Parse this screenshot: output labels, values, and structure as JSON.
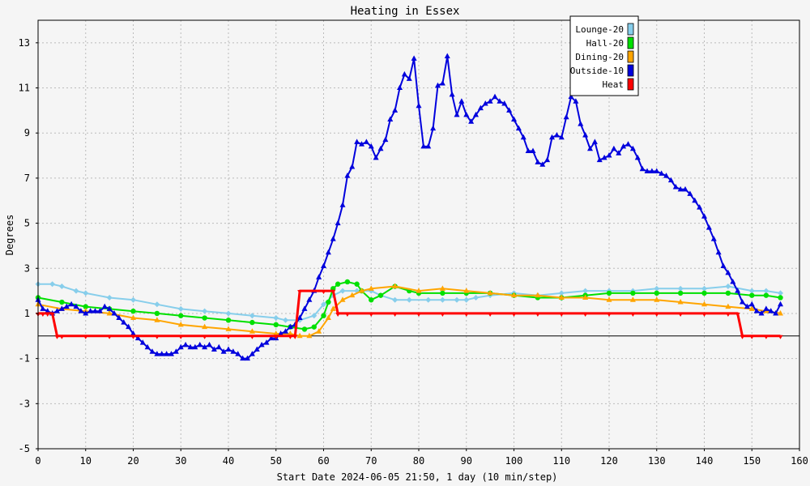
{
  "chart_data": {
    "type": "line",
    "title": "Heating in Essex",
    "xlabel": "Start Date 2024-06-05 21:50, 1 day (10 min/step)",
    "ylabel": "Degrees",
    "xlim": [
      0,
      160
    ],
    "ylim": [
      -5,
      14
    ],
    "x_ticks": [
      0,
      10,
      20,
      30,
      40,
      50,
      60,
      70,
      80,
      90,
      100,
      110,
      120,
      130,
      140,
      150,
      160
    ],
    "y_ticks": [
      -5,
      -3,
      -1,
      1,
      3,
      5,
      7,
      9,
      11,
      13
    ],
    "grid": true,
    "legend_position": "top-right",
    "series": [
      {
        "name": "Lounge-20",
        "color": "#87ceeb",
        "marker": "diamond",
        "points": [
          [
            0,
            2.3
          ],
          [
            3,
            2.3
          ],
          [
            5,
            2.2
          ],
          [
            8,
            2
          ],
          [
            10,
            1.9
          ],
          [
            15,
            1.7
          ],
          [
            20,
            1.6
          ],
          [
            25,
            1.4
          ],
          [
            30,
            1.2
          ],
          [
            35,
            1.1
          ],
          [
            40,
            1
          ],
          [
            45,
            0.9
          ],
          [
            50,
            0.8
          ],
          [
            52,
            0.7
          ],
          [
            55,
            0.7
          ],
          [
            58,
            0.9
          ],
          [
            60,
            1.4
          ],
          [
            62,
            1.8
          ],
          [
            64,
            2
          ],
          [
            67,
            2
          ],
          [
            70,
            2
          ],
          [
            72,
            1.8
          ],
          [
            75,
            1.6
          ],
          [
            78,
            1.6
          ],
          [
            82,
            1.6
          ],
          [
            85,
            1.6
          ],
          [
            88,
            1.6
          ],
          [
            90,
            1.6
          ],
          [
            92,
            1.7
          ],
          [
            95,
            1.8
          ],
          [
            100,
            1.9
          ],
          [
            105,
            1.8
          ],
          [
            110,
            1.9
          ],
          [
            115,
            2
          ],
          [
            120,
            2
          ],
          [
            125,
            2
          ],
          [
            130,
            2.1
          ],
          [
            135,
            2.1
          ],
          [
            140,
            2.1
          ],
          [
            145,
            2.2
          ],
          [
            150,
            2
          ],
          [
            153,
            2
          ],
          [
            156,
            1.9
          ]
        ]
      },
      {
        "name": "Hall-20",
        "color": "#00e000",
        "marker": "circle",
        "points": [
          [
            0,
            1.7
          ],
          [
            5,
            1.5
          ],
          [
            10,
            1.3
          ],
          [
            15,
            1.2
          ],
          [
            20,
            1.1
          ],
          [
            25,
            1
          ],
          [
            30,
            0.9
          ],
          [
            35,
            0.8
          ],
          [
            40,
            0.7
          ],
          [
            45,
            0.6
          ],
          [
            50,
            0.5
          ],
          [
            53,
            0.4
          ],
          [
            56,
            0.3
          ],
          [
            58,
            0.4
          ],
          [
            60,
            0.9
          ],
          [
            61,
            1.5
          ],
          [
            62,
            2.1
          ],
          [
            63,
            2.3
          ],
          [
            65,
            2.4
          ],
          [
            67,
            2.3
          ],
          [
            68,
            2
          ],
          [
            70,
            1.6
          ],
          [
            72,
            1.8
          ],
          [
            75,
            2.2
          ],
          [
            78,
            2
          ],
          [
            80,
            1.9
          ],
          [
            85,
            1.9
          ],
          [
            90,
            1.9
          ],
          [
            95,
            1.9
          ],
          [
            100,
            1.8
          ],
          [
            105,
            1.7
          ],
          [
            110,
            1.7
          ],
          [
            115,
            1.8
          ],
          [
            120,
            1.9
          ],
          [
            125,
            1.9
          ],
          [
            130,
            1.9
          ],
          [
            135,
            1.9
          ],
          [
            140,
            1.9
          ],
          [
            145,
            1.9
          ],
          [
            150,
            1.8
          ],
          [
            153,
            1.8
          ],
          [
            156,
            1.7
          ]
        ]
      },
      {
        "name": "Dining-20",
        "color": "#ffa500",
        "marker": "triangle",
        "points": [
          [
            0,
            1.4
          ],
          [
            5,
            1.2
          ],
          [
            10,
            1.1
          ],
          [
            15,
            1
          ],
          [
            20,
            0.8
          ],
          [
            25,
            0.7
          ],
          [
            30,
            0.5
          ],
          [
            35,
            0.4
          ],
          [
            40,
            0.3
          ],
          [
            45,
            0.2
          ],
          [
            50,
            0.1
          ],
          [
            53,
            0.1
          ],
          [
            55,
            0
          ],
          [
            57,
            0
          ],
          [
            59,
            0.2
          ],
          [
            61,
            0.8
          ],
          [
            62,
            1.2
          ],
          [
            64,
            1.6
          ],
          [
            66,
            1.8
          ],
          [
            68,
            2
          ],
          [
            70,
            2.1
          ],
          [
            75,
            2.2
          ],
          [
            80,
            2
          ],
          [
            85,
            2.1
          ],
          [
            90,
            2
          ],
          [
            95,
            1.9
          ],
          [
            100,
            1.8
          ],
          [
            105,
            1.8
          ],
          [
            110,
            1.7
          ],
          [
            115,
            1.7
          ],
          [
            120,
            1.6
          ],
          [
            125,
            1.6
          ],
          [
            130,
            1.6
          ],
          [
            135,
            1.5
          ],
          [
            140,
            1.4
          ],
          [
            145,
            1.3
          ],
          [
            150,
            1.2
          ],
          [
            153,
            1.1
          ],
          [
            156,
            1
          ]
        ]
      },
      {
        "name": "Outside-10",
        "color": "#0000dd",
        "marker": "triangle",
        "points": [
          [
            0,
            1.6
          ],
          [
            1,
            1.2
          ],
          [
            2,
            1.1
          ],
          [
            3,
            1
          ],
          [
            4,
            1.1
          ],
          [
            5,
            1.2
          ],
          [
            6,
            1.3
          ],
          [
            7,
            1.4
          ],
          [
            8,
            1.3
          ],
          [
            9,
            1.1
          ],
          [
            10,
            1
          ],
          [
            11,
            1.1
          ],
          [
            12,
            1.1
          ],
          [
            13,
            1.1
          ],
          [
            14,
            1.3
          ],
          [
            15,
            1.2
          ],
          [
            16,
            1
          ],
          [
            17,
            0.8
          ],
          [
            18,
            0.6
          ],
          [
            19,
            0.4
          ],
          [
            20,
            0.1
          ],
          [
            21,
            -0.1
          ],
          [
            22,
            -0.3
          ],
          [
            23,
            -0.5
          ],
          [
            24,
            -0.7
          ],
          [
            25,
            -0.8
          ],
          [
            26,
            -0.8
          ],
          [
            27,
            -0.8
          ],
          [
            28,
            -0.8
          ],
          [
            29,
            -0.7
          ],
          [
            30,
            -0.5
          ],
          [
            31,
            -0.4
          ],
          [
            32,
            -0.5
          ],
          [
            33,
            -0.5
          ],
          [
            34,
            -0.4
          ],
          [
            35,
            -0.5
          ],
          [
            36,
            -0.4
          ],
          [
            37,
            -0.6
          ],
          [
            38,
            -0.5
          ],
          [
            39,
            -0.7
          ],
          [
            40,
            -0.6
          ],
          [
            41,
            -0.7
          ],
          [
            42,
            -0.8
          ],
          [
            43,
            -1
          ],
          [
            44,
            -1
          ],
          [
            45,
            -0.8
          ],
          [
            46,
            -0.6
          ],
          [
            47,
            -0.4
          ],
          [
            48,
            -0.3
          ],
          [
            49,
            -0.1
          ],
          [
            50,
            -0.1
          ],
          [
            51,
            0.1
          ],
          [
            52,
            0.2
          ],
          [
            53,
            0.4
          ],
          [
            54,
            0.5
          ],
          [
            55,
            0.8
          ],
          [
            56,
            1.2
          ],
          [
            57,
            1.6
          ],
          [
            58,
            2
          ],
          [
            59,
            2.6
          ],
          [
            60,
            3.1
          ],
          [
            61,
            3.7
          ],
          [
            62,
            4.3
          ],
          [
            63,
            5
          ],
          [
            64,
            5.8
          ],
          [
            65,
            7.1
          ],
          [
            66,
            7.5
          ],
          [
            67,
            8.6
          ],
          [
            68,
            8.5
          ],
          [
            69,
            8.6
          ],
          [
            70,
            8.4
          ],
          [
            71,
            7.9
          ],
          [
            72,
            8.3
          ],
          [
            73,
            8.7
          ],
          [
            74,
            9.6
          ],
          [
            75,
            10
          ],
          [
            76,
            11
          ],
          [
            77,
            11.6
          ],
          [
            78,
            11.4
          ],
          [
            79,
            12.3
          ],
          [
            80,
            10.2
          ],
          [
            81,
            8.4
          ],
          [
            82,
            8.4
          ],
          [
            83,
            9.2
          ],
          [
            84,
            11.1
          ],
          [
            85,
            11.2
          ],
          [
            86,
            12.4
          ],
          [
            87,
            10.7
          ],
          [
            88,
            9.8
          ],
          [
            89,
            10.4
          ],
          [
            90,
            9.8
          ],
          [
            91,
            9.5
          ],
          [
            92,
            9.8
          ],
          [
            93,
            10.1
          ],
          [
            94,
            10.3
          ],
          [
            95,
            10.4
          ],
          [
            96,
            10.6
          ],
          [
            97,
            10.4
          ],
          [
            98,
            10.3
          ],
          [
            99,
            10
          ],
          [
            100,
            9.6
          ],
          [
            101,
            9.2
          ],
          [
            102,
            8.8
          ],
          [
            103,
            8.2
          ],
          [
            104,
            8.2
          ],
          [
            105,
            7.7
          ],
          [
            106,
            7.6
          ],
          [
            107,
            7.8
          ],
          [
            108,
            8.8
          ],
          [
            109,
            8.9
          ],
          [
            110,
            8.8
          ],
          [
            111,
            9.7
          ],
          [
            112,
            10.6
          ],
          [
            113,
            10.4
          ],
          [
            114,
            9.4
          ],
          [
            115,
            8.9
          ],
          [
            116,
            8.3
          ],
          [
            117,
            8.6
          ],
          [
            118,
            7.8
          ],
          [
            119,
            7.9
          ],
          [
            120,
            8
          ],
          [
            121,
            8.3
          ],
          [
            122,
            8.1
          ],
          [
            123,
            8.4
          ],
          [
            124,
            8.5
          ],
          [
            125,
            8.3
          ],
          [
            126,
            7.9
          ],
          [
            127,
            7.4
          ],
          [
            128,
            7.3
          ],
          [
            129,
            7.3
          ],
          [
            130,
            7.3
          ],
          [
            131,
            7.2
          ],
          [
            132,
            7.1
          ],
          [
            133,
            6.9
          ],
          [
            134,
            6.6
          ],
          [
            135,
            6.5
          ],
          [
            136,
            6.5
          ],
          [
            137,
            6.3
          ],
          [
            138,
            6
          ],
          [
            139,
            5.7
          ],
          [
            140,
            5.3
          ],
          [
            141,
            4.8
          ],
          [
            142,
            4.3
          ],
          [
            143,
            3.7
          ],
          [
            144,
            3.1
          ],
          [
            145,
            2.8
          ],
          [
            146,
            2.4
          ],
          [
            147,
            2
          ],
          [
            148,
            1.5
          ],
          [
            149,
            1.3
          ],
          [
            150,
            1.4
          ],
          [
            151,
            1.1
          ],
          [
            152,
            1
          ],
          [
            153,
            1.2
          ],
          [
            154,
            1.1
          ],
          [
            155,
            1
          ],
          [
            156,
            1.4
          ]
        ]
      },
      {
        "name": "Heat",
        "color": "#ff0000",
        "marker": "tick",
        "points": [
          [
            0,
            1
          ],
          [
            1,
            1
          ],
          [
            2,
            1
          ],
          [
            3,
            1
          ],
          [
            4,
            0
          ],
          [
            5,
            0
          ],
          [
            10,
            0
          ],
          [
            15,
            0
          ],
          [
            20,
            0
          ],
          [
            25,
            0
          ],
          [
            30,
            0
          ],
          [
            35,
            0
          ],
          [
            40,
            0
          ],
          [
            45,
            0
          ],
          [
            50,
            0
          ],
          [
            53,
            0
          ],
          [
            54,
            0
          ],
          [
            55,
            2
          ],
          [
            60,
            2
          ],
          [
            62,
            2
          ],
          [
            63,
            1
          ],
          [
            65,
            1
          ],
          [
            70,
            1
          ],
          [
            75,
            1
          ],
          [
            80,
            1
          ],
          [
            85,
            1
          ],
          [
            90,
            1
          ],
          [
            95,
            1
          ],
          [
            100,
            1
          ],
          [
            105,
            1
          ],
          [
            110,
            1
          ],
          [
            115,
            1
          ],
          [
            120,
            1
          ],
          [
            125,
            1
          ],
          [
            130,
            1
          ],
          [
            135,
            1
          ],
          [
            140,
            1
          ],
          [
            145,
            1
          ],
          [
            147,
            1
          ],
          [
            148,
            0
          ],
          [
            150,
            0
          ],
          [
            153,
            0
          ],
          [
            156,
            0
          ]
        ]
      }
    ]
  }
}
